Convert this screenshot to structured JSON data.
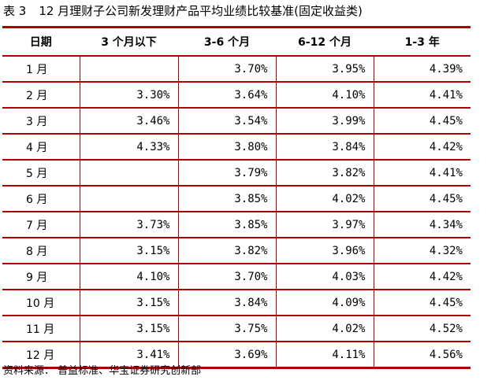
{
  "title": {
    "label": "表 3",
    "text": "12 月理财子公司新发理财产品平均业绩比较基准(固定收益类)"
  },
  "table": {
    "headers": [
      "日期",
      "3 个月以下",
      "3-6 个月",
      "6-12 个月",
      "1-3 年"
    ],
    "rows": [
      [
        "1 月",
        "",
        "3.70%",
        "3.95%",
        "4.39%"
      ],
      [
        "2 月",
        "3.30%",
        "3.64%",
        "4.10%",
        "4.41%"
      ],
      [
        "3 月",
        "3.46%",
        "3.54%",
        "3.99%",
        "4.45%"
      ],
      [
        "4 月",
        "4.33%",
        "3.80%",
        "3.84%",
        "4.42%"
      ],
      [
        "5 月",
        "",
        "3.79%",
        "3.82%",
        "4.41%"
      ],
      [
        "6 月",
        "",
        "3.85%",
        "4.02%",
        "4.45%"
      ],
      [
        "7 月",
        "3.73%",
        "3.85%",
        "3.97%",
        "4.34%"
      ],
      [
        "8 月",
        "3.15%",
        "3.82%",
        "3.96%",
        "4.32%"
      ],
      [
        "9 月",
        "4.10%",
        "3.70%",
        "4.03%",
        "4.42%"
      ],
      [
        "10 月",
        "3.15%",
        "3.84%",
        "4.09%",
        "4.45%"
      ],
      [
        "11 月",
        "3.15%",
        "3.75%",
        "4.02%",
        "4.52%"
      ],
      [
        "12 月",
        "3.41%",
        "3.69%",
        "4.11%",
        "4.56%"
      ]
    ]
  },
  "source": "资料来源：  普益标准、华宝证券研究创新部"
}
